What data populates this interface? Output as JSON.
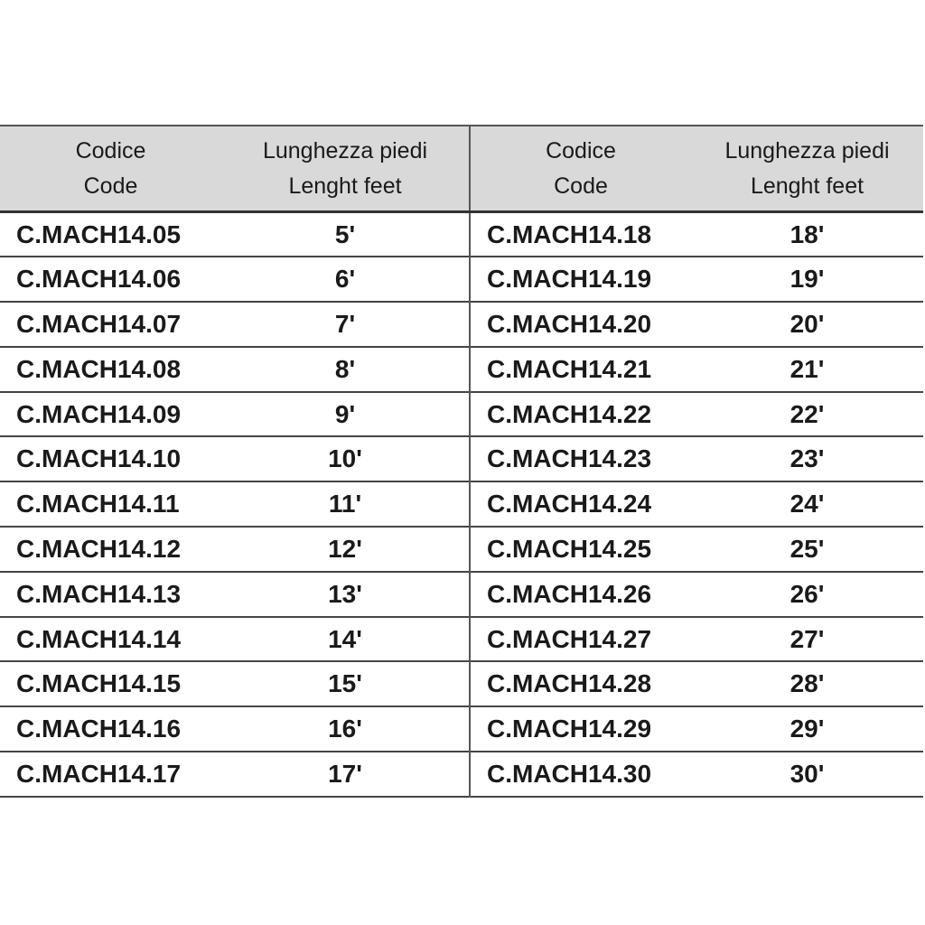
{
  "header": {
    "code_it": "Codice",
    "code_en": "Code",
    "length_it": "Lunghezza piedi",
    "length_en": "Lenght feet"
  },
  "rows": [
    {
      "left_code": "C.MACH14.05",
      "left_len": "5'",
      "right_code": "C.MACH14.18",
      "right_len": "18'"
    },
    {
      "left_code": "C.MACH14.06",
      "left_len": "6'",
      "right_code": "C.MACH14.19",
      "right_len": "19'"
    },
    {
      "left_code": "C.MACH14.07",
      "left_len": "7'",
      "right_code": "C.MACH14.20",
      "right_len": "20'"
    },
    {
      "left_code": "C.MACH14.08",
      "left_len": "8'",
      "right_code": "C.MACH14.21",
      "right_len": "21'"
    },
    {
      "left_code": "C.MACH14.09",
      "left_len": "9'",
      "right_code": "C.MACH14.22",
      "right_len": "22'"
    },
    {
      "left_code": "C.MACH14.10",
      "left_len": "10'",
      "right_code": "C.MACH14.23",
      "right_len": "23'"
    },
    {
      "left_code": "C.MACH14.11",
      "left_len": "11'",
      "right_code": "C.MACH14.24",
      "right_len": "24'"
    },
    {
      "left_code": "C.MACH14.12",
      "left_len": "12'",
      "right_code": "C.MACH14.25",
      "right_len": "25'"
    },
    {
      "left_code": "C.MACH14.13",
      "left_len": "13'",
      "right_code": "C.MACH14.26",
      "right_len": "26'"
    },
    {
      "left_code": "C.MACH14.14",
      "left_len": "14'",
      "right_code": "C.MACH14.27",
      "right_len": "27'"
    },
    {
      "left_code": "C.MACH14.15",
      "left_len": "15'",
      "right_code": "C.MACH14.28",
      "right_len": "28'"
    },
    {
      "left_code": "C.MACH14.16",
      "left_len": "16'",
      "right_code": "C.MACH14.29",
      "right_len": "29'"
    },
    {
      "left_code": "C.MACH14.17",
      "left_len": "17'",
      "right_code": "C.MACH14.30",
      "right_len": "30'"
    }
  ]
}
